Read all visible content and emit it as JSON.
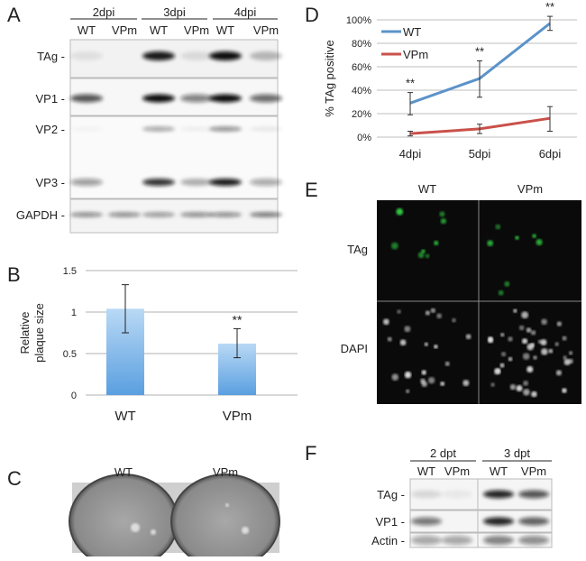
{
  "panel_labels": {
    "a": "A",
    "b": "B",
    "c": "C",
    "d": "D",
    "e": "E",
    "f": "F"
  },
  "panel_a": {
    "timepoints": [
      "2dpi",
      "3dpi",
      "4dpi"
    ],
    "lanes": [
      "WT",
      "VPm",
      "WT",
      "VPm",
      "WT",
      "VPm"
    ],
    "rows": [
      "TAg -",
      "VP1 -",
      "VP2 -",
      "VP3 -",
      "GAPDH -"
    ]
  },
  "panel_c": {
    "labels": [
      "WT",
      "VPm"
    ]
  },
  "panel_e": {
    "columns": [
      "WT",
      "VPm"
    ],
    "rows": [
      "TAg",
      "DAPI"
    ],
    "colors": {
      "tag": "#2ecc40",
      "dapi": "#dddddd"
    }
  },
  "panel_f": {
    "timepoints": [
      "2 dpt",
      "3 dpt"
    ],
    "lanes": [
      "WT",
      "VPm",
      "WT",
      "VPm"
    ],
    "rows": [
      "TAg -",
      "VP1 -",
      "Actin -"
    ]
  },
  "chart_data": [
    {
      "panel": "B",
      "type": "bar",
      "categories": [
        "WT",
        "VPm"
      ],
      "values": [
        1.04,
        0.62
      ],
      "error_low": [
        0.75,
        0.45
      ],
      "error_high": [
        1.33,
        0.8
      ],
      "annotations": [
        "",
        "**"
      ],
      "ylabel": "Relative plaque size",
      "ylim": [
        0,
        1.5
      ],
      "yticks": [
        "0",
        "0.5",
        "1",
        "1.5"
      ],
      "grid": true,
      "bar_color": "#8fc0ea"
    },
    {
      "panel": "D",
      "type": "line",
      "categories": [
        "4dpi",
        "5dpi",
        "6dpi"
      ],
      "ylabel": "% TAg positive",
      "ylim": [
        0,
        100
      ],
      "yticks": [
        "0%",
        "20%",
        "40%",
        "60%",
        "80%",
        "100%"
      ],
      "grid": true,
      "legend": "top-left",
      "annotations": [
        "**",
        "**",
        "**"
      ],
      "series": [
        {
          "name": "WT",
          "color": "#5b93c9",
          "values": [
            29,
            50,
            97
          ],
          "error_low": [
            19,
            34,
            91
          ],
          "error_high": [
            38,
            65,
            103
          ]
        },
        {
          "name": "VPm",
          "color": "#c9514a",
          "values": [
            3,
            7,
            16
          ],
          "error_low": [
            1,
            3,
            5
          ],
          "error_high": [
            5,
            11,
            26
          ]
        }
      ]
    }
  ]
}
